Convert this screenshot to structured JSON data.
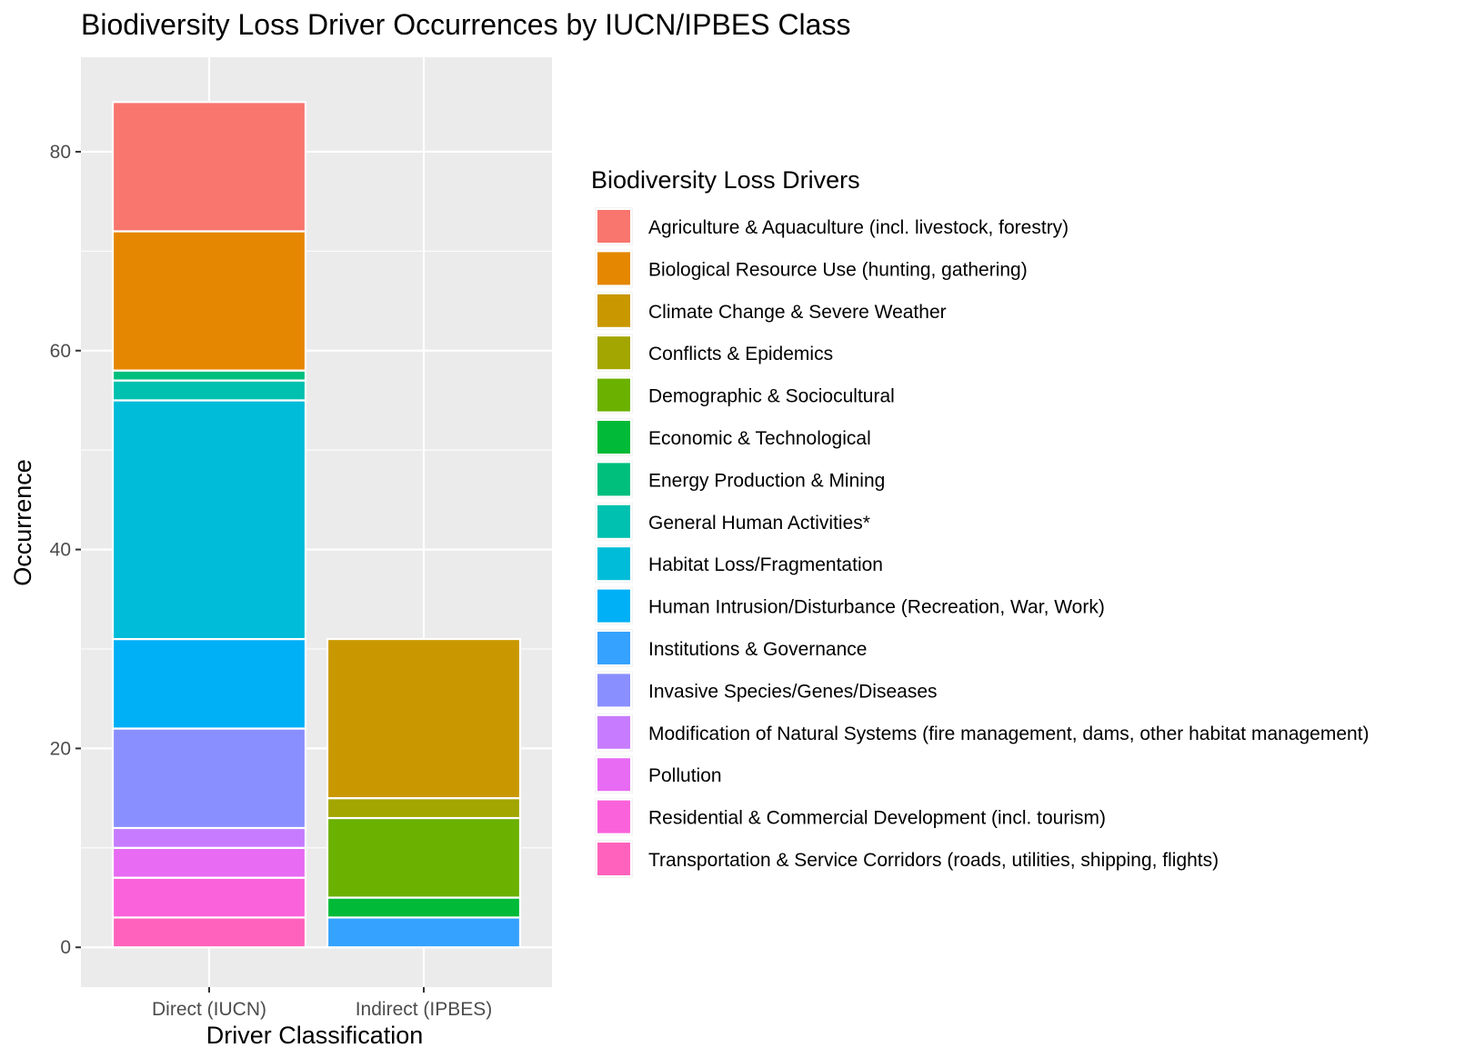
{
  "chart_data": {
    "type": "bar",
    "stacked": true,
    "title": "Biodiversity Loss Driver Occurrences by IUCN/IPBES Class",
    "xlabel": "Driver Classification",
    "ylabel": "Occurrence",
    "categories": [
      "Direct (IUCN)",
      "Indirect (IPBES)"
    ],
    "ylim": [
      -4,
      89.5
    ],
    "yticks": [
      0,
      20,
      40,
      60,
      80
    ],
    "legend_title": "Biodiversity Loss Drivers",
    "legend_position": "right",
    "grid": true,
    "series": [
      {
        "name": "Agriculture & Aquaculture (incl. livestock, forestry)",
        "color": "#F8766D",
        "values": [
          13,
          0
        ]
      },
      {
        "name": "Biological Resource Use (hunting, gathering)",
        "color": "#E58700",
        "values": [
          14,
          0
        ]
      },
      {
        "name": "Climate Change & Severe Weather",
        "color": "#C99800",
        "values": [
          0,
          16
        ]
      },
      {
        "name": "Conflicts & Epidemics",
        "color": "#A3A500",
        "values": [
          0,
          2
        ]
      },
      {
        "name": "Demographic & Sociocultural",
        "color": "#6BB100",
        "values": [
          0,
          8
        ]
      },
      {
        "name": "Economic & Technological",
        "color": "#00BA38",
        "values": [
          0,
          2
        ]
      },
      {
        "name": "Energy Production & Mining",
        "color": "#00BF7D",
        "values": [
          1,
          0
        ]
      },
      {
        "name": "General Human Activities*",
        "color": "#00C0AF",
        "values": [
          2,
          0
        ]
      },
      {
        "name": "Habitat Loss/Fragmentation",
        "color": "#00BCD8",
        "values": [
          24,
          0
        ]
      },
      {
        "name": "Human Intrusion/Disturbance (Recreation, War, Work)",
        "color": "#00B0F6",
        "values": [
          9,
          0
        ]
      },
      {
        "name": "Institutions & Governance",
        "color": "#35A2FF",
        "values": [
          0,
          3
        ]
      },
      {
        "name": "Invasive Species/Genes/Diseases",
        "color": "#8A8FFF",
        "values": [
          10,
          0
        ]
      },
      {
        "name": "Modification of Natural Systems (fire management, dams, other habitat management)",
        "color": "#C77CFF",
        "values": [
          2,
          0
        ]
      },
      {
        "name": "Pollution",
        "color": "#E76BF3",
        "values": [
          3,
          0
        ]
      },
      {
        "name": "Residential & Commercial Development (incl. tourism)",
        "color": "#FA62DB",
        "values": [
          4,
          0
        ]
      },
      {
        "name": "Transportation & Service Corridors (roads, utilities, shipping, flights)",
        "color": "#FF62BC",
        "values": [
          3,
          0
        ]
      }
    ],
    "panel_color": "#EBEBEB",
    "grid_color": "#FFFFFF"
  }
}
